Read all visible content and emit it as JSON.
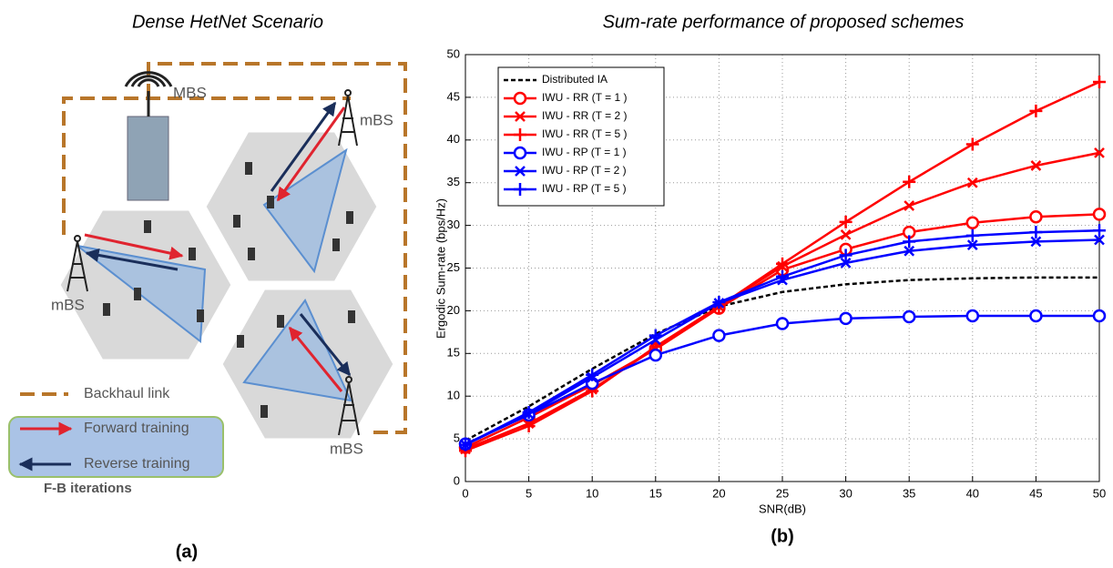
{
  "diagram": {
    "title": "Dense HetNet Scenario",
    "macro_bs": "MBS",
    "small_bs": [
      "mBS",
      "mBS",
      "mBS"
    ],
    "legend": {
      "backhaul": "Backhaul link",
      "forward": "Forward training",
      "reverse": "Reverse training",
      "iterations": "F-B iterations"
    },
    "caption": "(a)"
  },
  "chart_data": {
    "type": "line",
    "title": "Sum-rate performance of proposed schemes",
    "caption": "(b)",
    "xlabel": "SNR(dB)",
    "ylabel": "Ergodic Sum-rate (bps/Hz)",
    "x": [
      0,
      5,
      10,
      15,
      20,
      25,
      30,
      35,
      40,
      45,
      50
    ],
    "xlim": [
      0,
      50
    ],
    "xticks": [
      0,
      5,
      10,
      15,
      20,
      25,
      30,
      35,
      40,
      45,
      50
    ],
    "ylim": [
      0,
      50
    ],
    "yticks": [
      0,
      5,
      10,
      15,
      20,
      25,
      30,
      35,
      40,
      45,
      50
    ],
    "grid": true,
    "legend_position": "upper-left",
    "series": [
      {
        "name": "Distributed IA",
        "color": "#000000",
        "line_style": "dashed",
        "marker": "none",
        "values": [
          4.8,
          8.8,
          13.2,
          17.3,
          20.5,
          22.2,
          23.1,
          23.6,
          23.8,
          23.9,
          23.9
        ]
      },
      {
        "name": "IWU - RR (T = 1 )",
        "color": "#ff0000",
        "line_style": "solid",
        "marker": "circle",
        "values": [
          4.0,
          7.5,
          11.3,
          15.5,
          20.3,
          24.8,
          27.2,
          29.2,
          30.3,
          31.0,
          31.3
        ]
      },
      {
        "name": "IWU - RR (T = 2 )",
        "color": "#ff0000",
        "line_style": "solid",
        "marker": "x",
        "values": [
          3.8,
          6.8,
          10.8,
          15.6,
          20.5,
          25.2,
          28.9,
          32.3,
          35.0,
          37.0,
          38.5
        ]
      },
      {
        "name": "IWU - RR (T = 5 )",
        "color": "#ff0000",
        "line_style": "solid",
        "marker": "plus",
        "values": [
          3.6,
          6.5,
          10.6,
          15.8,
          20.5,
          25.5,
          30.4,
          35.1,
          39.5,
          43.4,
          46.8
        ]
      },
      {
        "name": "IWU - RP (T = 1 )",
        "color": "#0000ff",
        "line_style": "solid",
        "marker": "circle",
        "values": [
          4.4,
          7.8,
          11.5,
          14.8,
          17.1,
          18.5,
          19.1,
          19.3,
          19.4,
          19.4,
          19.4
        ]
      },
      {
        "name": "IWU - RP (T = 2 )",
        "color": "#0000ff",
        "line_style": "solid",
        "marker": "x",
        "values": [
          4.3,
          7.9,
          12.2,
          16.6,
          20.9,
          23.6,
          25.6,
          27.0,
          27.7,
          28.1,
          28.3
        ]
      },
      {
        "name": "IWU - RP (T = 5 )",
        "color": "#0000ff",
        "line_style": "solid",
        "marker": "plus",
        "values": [
          4.3,
          8.1,
          12.5,
          17.1,
          21.0,
          24.0,
          26.5,
          28.1,
          28.8,
          29.2,
          29.4
        ]
      }
    ]
  }
}
